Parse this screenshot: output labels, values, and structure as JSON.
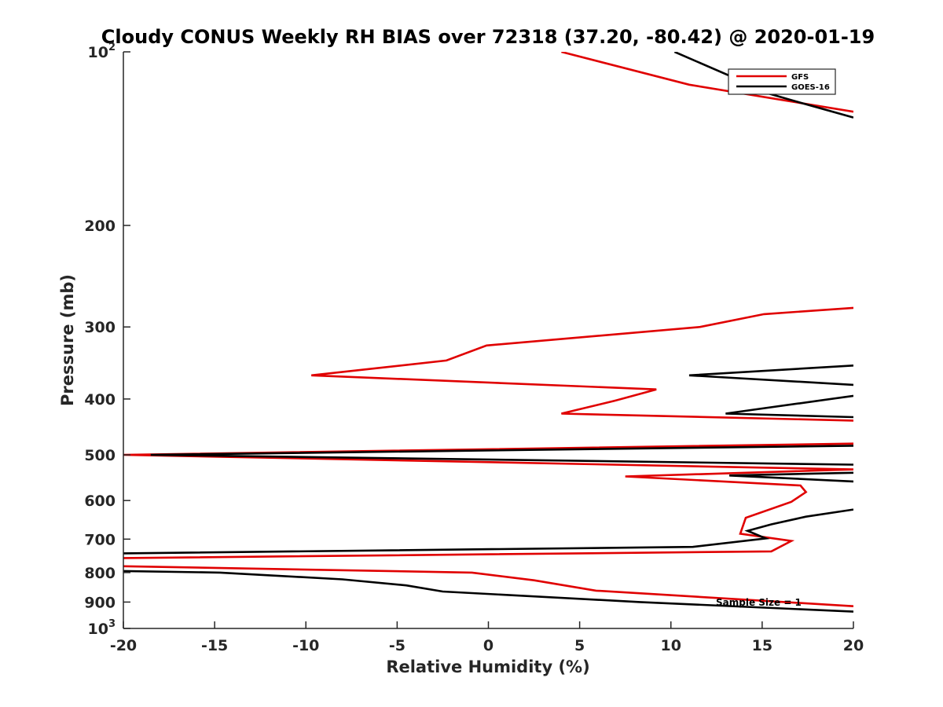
{
  "chart_data": {
    "type": "line",
    "title": "Cloudy CONUS Weekly RH BIAS over 72318 (37.20, -80.42) @ 2020-01-19",
    "xlabel": "Relative Humidity (%)",
    "ylabel": "Pressure (mb)",
    "xlim": [
      -20,
      20
    ],
    "ylim": [
      100,
      1000
    ],
    "yscale": "log",
    "y_reversed": true,
    "xticks": [
      -20,
      -15,
      -10,
      -5,
      0,
      5,
      10,
      15,
      20
    ],
    "xtick_labels": [
      "-20",
      "-15",
      "-10",
      "-5",
      "0",
      "5",
      "10",
      "15",
      "20"
    ],
    "yticks": [
      100,
      200,
      300,
      400,
      500,
      600,
      700,
      800,
      900,
      1000
    ],
    "ytick_labels": [
      {
        "base": "10",
        "exp": "2"
      },
      {
        "base": "200",
        "exp": ""
      },
      {
        "base": "300",
        "exp": ""
      },
      {
        "base": "400",
        "exp": ""
      },
      {
        "base": "500",
        "exp": ""
      },
      {
        "base": "600",
        "exp": ""
      },
      {
        "base": "700",
        "exp": ""
      },
      {
        "base": "800",
        "exp": ""
      },
      {
        "base": "900",
        "exp": ""
      },
      {
        "base": "10",
        "exp": "3"
      }
    ],
    "legend_position": "top-right",
    "annotation": "Sample Size = 1",
    "colors": {
      "gfs": "#e00000",
      "goes": "#000000",
      "axis": "#262626"
    },
    "series": [
      {
        "name": "GFS",
        "color": "#e00000",
        "segments": [
          [
            [
              4.0,
              100
            ],
            [
              11.0,
              114
            ],
            [
              20.0,
              127
            ]
          ],
          [
            [
              20.0,
              278
            ],
            [
              15.1,
              285
            ],
            [
              11.6,
              300
            ],
            [
              -0.1,
              323
            ],
            [
              -2.3,
              343
            ],
            [
              -9.7,
              364
            ],
            [
              9.2,
              385
            ],
            [
              6.9,
              403
            ],
            [
              4.0,
              424
            ],
            [
              20.0,
              436
            ]
          ],
          [
            [
              20.0,
              478
            ],
            [
              -20.0,
              500
            ],
            [
              20.0,
              530
            ],
            [
              7.5,
              545
            ],
            [
              17.1,
              565
            ],
            [
              17.4,
              580
            ],
            [
              16.6,
              603
            ],
            [
              14.1,
              643
            ],
            [
              13.8,
              685
            ],
            [
              16.6,
              705
            ],
            [
              15.5,
              735
            ],
            [
              -20.0,
              755
            ]
          ],
          [
            [
              -20.0,
              780
            ],
            [
              -0.9,
              800
            ],
            [
              2.5,
              825
            ],
            [
              5.9,
              860
            ],
            [
              20.0,
              915
            ]
          ]
        ]
      },
      {
        "name": "GOES-16",
        "color": "#000000",
        "segments": [
          [
            [
              10.2,
              100
            ],
            [
              13.5,
              111
            ],
            [
              14.1,
              115
            ],
            [
              16.5,
              121
            ],
            [
              20.0,
              130
            ]
          ],
          [
            [
              20.0,
              350
            ],
            [
              11.0,
              364
            ],
            [
              20.0,
              378
            ]
          ],
          [
            [
              20.0,
              395
            ],
            [
              13.0,
              424
            ],
            [
              20.0,
              430
            ]
          ],
          [
            [
              20.0,
              482
            ],
            [
              -18.5,
              500
            ],
            [
              20.0,
              520
            ]
          ],
          [
            [
              20.0,
              537
            ],
            [
              13.2,
              543
            ],
            [
              20.0,
              556
            ]
          ],
          [
            [
              20.0,
              622
            ],
            [
              17.4,
              640
            ],
            [
              15.5,
              660
            ],
            [
              14.2,
              677
            ],
            [
              15.2,
              698
            ],
            [
              11.2,
              722
            ],
            [
              -20.0,
              741
            ]
          ],
          [
            [
              -20.0,
              795
            ],
            [
              -14.7,
              800
            ],
            [
              -8.0,
              822
            ],
            [
              -4.5,
              842
            ],
            [
              -2.5,
              863
            ],
            [
              8.3,
              900
            ],
            [
              20.0,
              935
            ]
          ]
        ]
      }
    ]
  }
}
